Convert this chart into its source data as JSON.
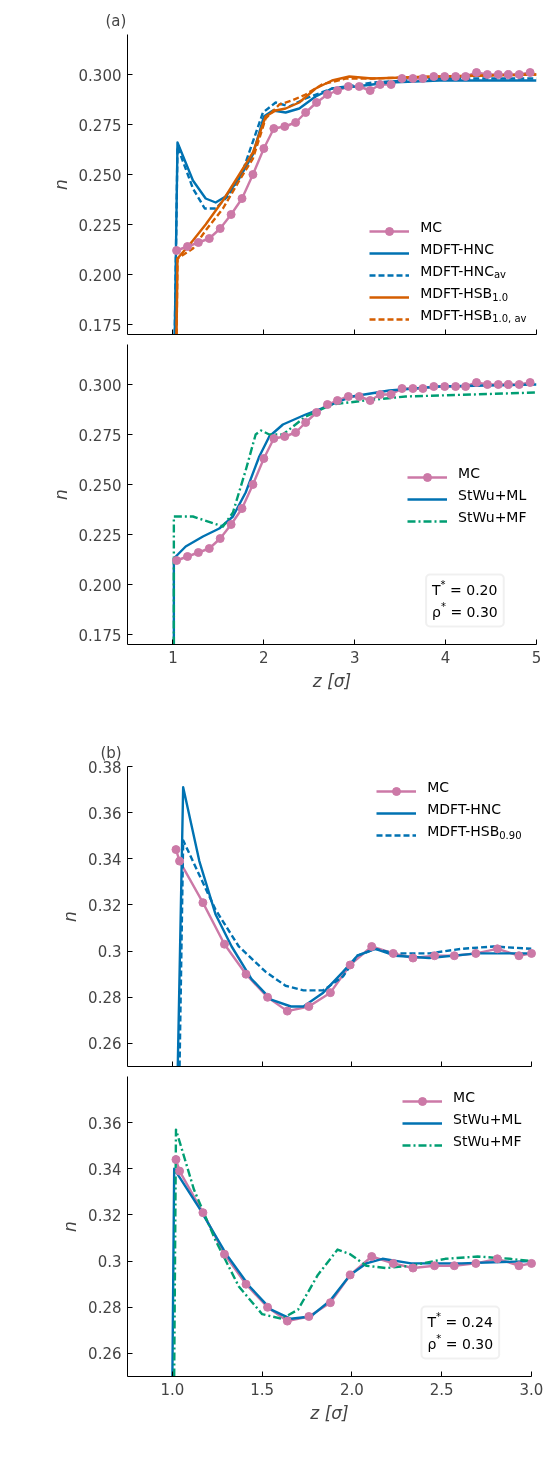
{
  "chart_data": [
    {
      "type": "line",
      "title": "(a)",
      "ylabel": "n",
      "xlim": [
        0.5,
        5
      ],
      "ylim": [
        0.17,
        0.32
      ],
      "xticks": [
        1,
        2,
        3,
        4,
        5
      ],
      "yticks": [
        0.175,
        {
          "value": 0.2,
          "label": "0.200"
        },
        0.225,
        {
          "value": 0.25,
          "label": "0.250"
        },
        0.275,
        {
          "value": 0.3,
          "label": "0.300"
        }
      ],
      "tick_labels": "y",
      "legend": "bottom right",
      "series": [
        {
          "name": "MC",
          "color": "#cc79a7",
          "marker": "circle",
          "line_style": "solid",
          "x": [
            1.04,
            1.16,
            1.28,
            1.4,
            1.52,
            1.64,
            1.76,
            1.88,
            2.0,
            2.11,
            2.23,
            2.35,
            2.46,
            2.58,
            2.7,
            2.81,
            2.93,
            3.05,
            3.17,
            3.28,
            3.4,
            3.52,
            3.64,
            3.75,
            3.87,
            3.99,
            4.11,
            4.22,
            4.34,
            4.46,
            4.58,
            4.69,
            4.81,
            4.93
          ],
          "values": [
            0.212,
            0.214,
            0.216,
            0.218,
            0.223,
            0.23,
            0.238,
            0.25,
            0.263,
            0.273,
            0.274,
            0.276,
            0.281,
            0.286,
            0.29,
            0.292,
            0.294,
            0.294,
            0.292,
            0.295,
            0.295,
            0.298,
            0.298,
            0.298,
            0.299,
            0.299,
            0.299,
            0.299,
            0.301,
            0.3,
            0.3,
            0.3,
            0.3,
            0.301
          ]
        },
        {
          "name": "MDFT-HNC",
          "color": "#0072b2",
          "marker": "none",
          "line_style": "solid",
          "x": [
            1.02,
            1.05,
            1.22,
            1.36,
            1.47,
            1.58,
            1.73,
            1.88,
            2.0,
            2.1,
            2.24,
            2.39,
            2.57,
            2.75,
            3.01,
            3.38,
            3.93,
            5.0
          ],
          "values": [
            0.17,
            0.266,
            0.247,
            0.238,
            0.236,
            0.239,
            0.248,
            0.26,
            0.279,
            0.282,
            0.281,
            0.283,
            0.289,
            0.293,
            0.294,
            0.296,
            0.297,
            0.297
          ]
        },
        {
          "name": "MDFT-HNC$_{av}$",
          "color": "#0072b2",
          "marker": "none",
          "line_style": "dashed",
          "x": [
            1.02,
            1.05,
            1.22,
            1.35,
            1.47,
            1.62,
            1.77,
            1.99,
            2.13,
            2.28,
            2.46,
            2.75,
            3.2,
            3.93,
            5.0
          ],
          "values": [
            0.17,
            0.264,
            0.243,
            0.233,
            0.233,
            0.24,
            0.252,
            0.281,
            0.286,
            0.284,
            0.288,
            0.293,
            0.296,
            0.298,
            0.298
          ]
        },
        {
          "name": "MDFT-HSB$_{1.0}$",
          "color": "#d55e00",
          "marker": "none",
          "line_style": "solid",
          "x": [
            1.04,
            1.05,
            1.22,
            1.36,
            1.55,
            1.73,
            1.88,
            2.02,
            2.13,
            2.24,
            2.39,
            2.57,
            2.75,
            2.94,
            3.19,
            3.93,
            5.0
          ],
          "values": [
            0.17,
            0.208,
            0.217,
            0.225,
            0.237,
            0.25,
            0.261,
            0.279,
            0.282,
            0.283,
            0.286,
            0.293,
            0.297,
            0.299,
            0.298,
            0.299,
            0.3
          ]
        },
        {
          "name": "MDFT-HSB$_{1.0, av}$",
          "color": "#d55e00",
          "marker": "none",
          "line_style": "dashed",
          "x": [
            1.04,
            1.05,
            1.22,
            1.36,
            1.55,
            1.73,
            1.88,
            2.02,
            2.17,
            2.31,
            2.46,
            2.64,
            2.9,
            3.19,
            3.93,
            5.0
          ],
          "values": [
            0.17,
            0.208,
            0.213,
            0.222,
            0.233,
            0.247,
            0.258,
            0.278,
            0.285,
            0.287,
            0.29,
            0.295,
            0.298,
            0.298,
            0.299,
            0.3
          ]
        }
      ]
    },
    {
      "type": "line",
      "xlabel": "z [σ]",
      "ylabel": "n",
      "xlim": [
        0.5,
        5
      ],
      "ylim": [
        0.17,
        0.32
      ],
      "xticks": [
        1,
        2,
        3,
        4,
        5
      ],
      "yticks": [
        0.175,
        {
          "value": 0.2,
          "label": "0.200"
        },
        0.225,
        {
          "value": 0.25,
          "label": "0.250"
        },
        0.275,
        {
          "value": 0.3,
          "label": "0.300"
        }
      ],
      "legend": "right",
      "annotations": [
        "T$^{*}$ = 0.20\nρ$^{*}$ = 0.30"
      ],
      "series": [
        {
          "name": "MC",
          "color": "#cc79a7",
          "marker": "circle",
          "line_style": "solid",
          "x": [
            1.04,
            1.16,
            1.28,
            1.4,
            1.52,
            1.64,
            1.76,
            1.88,
            2.0,
            2.11,
            2.23,
            2.35,
            2.46,
            2.58,
            2.7,
            2.81,
            2.93,
            3.05,
            3.17,
            3.28,
            3.4,
            3.52,
            3.64,
            3.75,
            3.87,
            3.99,
            4.11,
            4.22,
            4.34,
            4.46,
            4.58,
            4.69,
            4.81,
            4.93
          ],
          "values": [
            0.212,
            0.214,
            0.216,
            0.218,
            0.223,
            0.23,
            0.238,
            0.25,
            0.263,
            0.273,
            0.274,
            0.276,
            0.281,
            0.286,
            0.29,
            0.292,
            0.294,
            0.294,
            0.292,
            0.295,
            0.295,
            0.298,
            0.298,
            0.298,
            0.299,
            0.299,
            0.299,
            0.299,
            0.301,
            0.3,
            0.3,
            0.3,
            0.3,
            0.301
          ]
        },
        {
          "name": "StWu+ML",
          "color": "#0072b2",
          "marker": "none",
          "line_style": "solid",
          "x": [
            1.01,
            1.01,
            1.14,
            1.33,
            1.51,
            1.66,
            1.8,
            1.95,
            2.06,
            2.21,
            2.46,
            2.75,
            2.97,
            3.38,
            3.93,
            5.0
          ],
          "values": [
            0.17,
            0.213,
            0.219,
            0.224,
            0.228,
            0.234,
            0.246,
            0.264,
            0.274,
            0.28,
            0.285,
            0.29,
            0.294,
            0.297,
            0.299,
            0.3
          ]
        },
        {
          "name": "StWu+MF",
          "color": "#009e73",
          "marker": "none",
          "line_style": "dashdot",
          "x": [
            1.01,
            1.01,
            1.22,
            1.55,
            1.66,
            1.8,
            1.91,
            1.97,
            2.06,
            2.21,
            2.46,
            2.75,
            3.12,
            3.56,
            4.29,
            5.0
          ],
          "values": [
            0.17,
            0.234,
            0.234,
            0.229,
            0.236,
            0.257,
            0.275,
            0.277,
            0.275,
            0.275,
            0.284,
            0.29,
            0.292,
            0.294,
            0.295,
            0.296
          ]
        }
      ]
    },
    {
      "type": "line",
      "title": "(b)",
      "ylabel": "n",
      "xlim": [
        0.75,
        3.0
      ],
      "ylim": [
        0.25,
        0.38
      ],
      "xticks": [
        1,
        1.5,
        2,
        2.5,
        3
      ],
      "yticks": [
        0.26,
        0.28,
        0.3,
        0.32,
        0.34,
        0.36,
        0.38
      ],
      "tick_labels": "y",
      "legend": "top right",
      "series": [
        {
          "name": "MC",
          "color": "#cc79a7",
          "marker": "circle",
          "line_style": "solid",
          "x": [
            1.02,
            1.04,
            1.17,
            1.29,
            1.41,
            1.53,
            1.64,
            1.76,
            1.88,
            1.99,
            2.11,
            2.23,
            2.34,
            2.46,
            2.57,
            2.69,
            2.81,
            2.93,
            3.0
          ],
          "values": [
            0.344,
            0.339,
            0.321,
            0.303,
            0.29,
            0.28,
            0.274,
            0.276,
            0.282,
            0.294,
            0.302,
            0.299,
            0.297,
            0.298,
            0.298,
            0.299,
            0.301,
            0.298,
            0.299
          ]
        },
        {
          "name": "MDFT-HNC",
          "color": "#0072b2",
          "marker": "none",
          "line_style": "solid",
          "x": [
            1.03,
            1.06,
            1.15,
            1.24,
            1.33,
            1.44,
            1.55,
            1.66,
            1.73,
            1.84,
            1.95,
            2.03,
            2.13,
            2.24,
            2.43,
            2.7,
            3.0
          ],
          "values": [
            0.25,
            0.371,
            0.339,
            0.316,
            0.302,
            0.288,
            0.279,
            0.276,
            0.276,
            0.282,
            0.291,
            0.298,
            0.301,
            0.298,
            0.297,
            0.299,
            0.299
          ]
        },
        {
          "name": "MDFT-HSB$_{0.90}$",
          "color": "#0072b2",
          "marker": "none",
          "line_style": "dashed",
          "x": [
            1.04,
            1.06,
            1.15,
            1.24,
            1.37,
            1.52,
            1.63,
            1.73,
            1.84,
            1.95,
            2.03,
            2.13,
            2.24,
            2.43,
            2.61,
            2.79,
            3.0
          ],
          "values": [
            0.25,
            0.348,
            0.333,
            0.318,
            0.302,
            0.291,
            0.285,
            0.283,
            0.283,
            0.289,
            0.298,
            0.301,
            0.299,
            0.299,
            0.301,
            0.302,
            0.301
          ]
        }
      ]
    },
    {
      "type": "line",
      "xlabel": "z [σ]",
      "ylabel": "n",
      "xlim": [
        0.75,
        3.0
      ],
      "ylim": [
        0.25,
        0.38
      ],
      "xticks": [
        {
          "value": 1,
          "label": "1.0"
        },
        1.5,
        {
          "value": 2,
          "label": "2.0"
        },
        2.5,
        {
          "value": 3,
          "label": "3.0"
        }
      ],
      "yticks": [
        0.26,
        0.28,
        0.3,
        0.32,
        0.34,
        0.36
      ],
      "legend": "top right",
      "annotations": [
        "T$^{*}$ = 0.24\nρ$^{*}$ = 0.30"
      ],
      "series": [
        {
          "name": "MC",
          "color": "#cc79a7",
          "marker": "circle",
          "line_style": "solid",
          "x": [
            1.02,
            1.04,
            1.17,
            1.29,
            1.41,
            1.53,
            1.64,
            1.76,
            1.88,
            1.99,
            2.11,
            2.23,
            2.34,
            2.46,
            2.57,
            2.69,
            2.81,
            2.93,
            3.0
          ],
          "values": [
            0.344,
            0.339,
            0.321,
            0.303,
            0.29,
            0.28,
            0.274,
            0.276,
            0.282,
            0.294,
            0.302,
            0.299,
            0.297,
            0.298,
            0.298,
            0.299,
            0.301,
            0.298,
            0.299
          ]
        },
        {
          "name": "StWu+ML",
          "color": "#0072b2",
          "marker": "none",
          "line_style": "solid",
          "x": [
            1.0,
            1.01,
            1.15,
            1.3,
            1.43,
            1.55,
            1.66,
            1.77,
            1.88,
            1.99,
            2.08,
            2.17,
            2.33,
            2.61,
            3.0
          ],
          "values": [
            0.25,
            0.34,
            0.323,
            0.303,
            0.289,
            0.279,
            0.275,
            0.276,
            0.283,
            0.294,
            0.299,
            0.301,
            0.299,
            0.299,
            0.3
          ]
        },
        {
          "name": "StWu+MF",
          "color": "#009e73",
          "marker": "none",
          "line_style": "dashdot",
          "x": [
            1.01,
            1.02,
            1.12,
            1.24,
            1.37,
            1.5,
            1.61,
            1.7,
            1.81,
            1.92,
            1.99,
            2.08,
            2.19,
            2.33,
            2.52,
            2.7,
            2.88,
            3.0
          ],
          "values": [
            0.25,
            0.357,
            0.331,
            0.309,
            0.289,
            0.277,
            0.275,
            0.279,
            0.294,
            0.305,
            0.303,
            0.298,
            0.297,
            0.298,
            0.301,
            0.302,
            0.301,
            0.3
          ]
        }
      ]
    }
  ]
}
